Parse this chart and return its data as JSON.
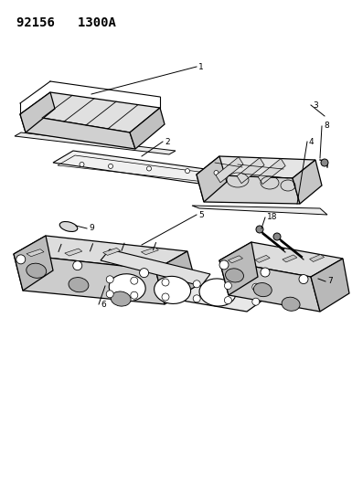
{
  "title": "92156   1300A",
  "bg_color": "#ffffff",
  "line_color": "#000000",
  "title_fontsize": 10,
  "fig_width": 3.85,
  "fig_height": 5.33,
  "dpi": 100
}
